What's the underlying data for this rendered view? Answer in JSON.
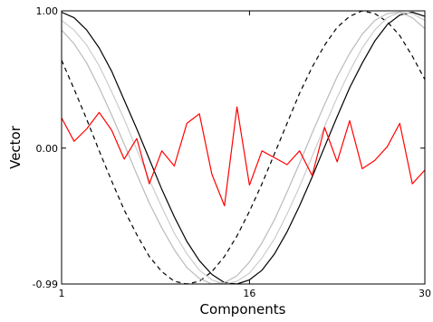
{
  "chart_data": {
    "type": "line",
    "xlabel": "Components",
    "ylabel": "Vector",
    "xlim": [
      1,
      30
    ],
    "ylim": [
      -0.99,
      1.0
    ],
    "x_ticks": [
      1,
      16,
      30
    ],
    "x_tick_labels": [
      "1",
      "16",
      "30"
    ],
    "y_ticks": [
      -0.99,
      0.0,
      1.0
    ],
    "y_tick_labels": [
      "-0.99",
      "0.00",
      "1.00"
    ],
    "grid": false,
    "legend": "none",
    "series": [
      {
        "color": "#000000",
        "dash": "solid",
        "x": [
          1,
          2,
          3,
          4,
          5,
          6,
          7,
          8,
          9,
          10,
          11,
          12,
          13,
          14,
          15,
          16,
          17,
          18,
          19,
          20,
          21,
          22,
          23,
          24,
          25,
          26,
          27,
          28,
          29,
          30
        ],
        "y": [
          0.99,
          0.95,
          0.86,
          0.73,
          0.56,
          0.35,
          0.14,
          -0.08,
          -0.3,
          -0.5,
          -0.68,
          -0.82,
          -0.92,
          -0.98,
          -0.99,
          -0.96,
          -0.89,
          -0.77,
          -0.61,
          -0.42,
          -0.21,
          0.01,
          0.23,
          0.44,
          0.62,
          0.78,
          0.9,
          0.97,
          0.99,
          0.96
        ]
      },
      {
        "color": "#000000",
        "dash": "dashed",
        "x": [
          1,
          2,
          3,
          4,
          5,
          6,
          7,
          8,
          9,
          10,
          11,
          12,
          13,
          14,
          15,
          16,
          17,
          18,
          19,
          20,
          21,
          22,
          23,
          24,
          25,
          26,
          27,
          28,
          29,
          30
        ],
        "y": [
          0.64,
          0.43,
          0.21,
          -0.02,
          -0.24,
          -0.45,
          -0.63,
          -0.79,
          -0.9,
          -0.97,
          -0.99,
          -0.97,
          -0.9,
          -0.79,
          -0.64,
          -0.46,
          -0.26,
          -0.04,
          0.18,
          0.4,
          0.59,
          0.75,
          0.88,
          0.96,
          1.0,
          0.98,
          0.92,
          0.82,
          0.67,
          0.5
        ]
      },
      {
        "color": "#cccccc",
        "dash": "solid",
        "x": [
          1,
          2,
          3,
          4,
          5,
          6,
          7,
          8,
          9,
          10,
          11,
          12,
          13,
          14,
          15,
          16,
          17,
          18,
          19,
          20,
          21,
          22,
          23,
          24,
          25,
          26,
          27,
          28,
          29,
          30
        ],
        "y": [
          0.93,
          0.86,
          0.75,
          0.6,
          0.41,
          0.21,
          -0.01,
          -0.23,
          -0.43,
          -0.62,
          -0.77,
          -0.89,
          -0.96,
          -0.99,
          -0.97,
          -0.91,
          -0.8,
          -0.66,
          -0.48,
          -0.28,
          -0.06,
          0.16,
          0.37,
          0.56,
          0.73,
          0.86,
          0.95,
          0.99,
          0.98,
          0.93
        ]
      },
      {
        "color": "#bbbbbb",
        "dash": "solid",
        "x": [
          1,
          2,
          3,
          4,
          5,
          6,
          7,
          8,
          9,
          10,
          11,
          12,
          13,
          14,
          15,
          16,
          17,
          18,
          19,
          20,
          21,
          22,
          23,
          24,
          25,
          26,
          27,
          28,
          29,
          30
        ],
        "y": [
          0.86,
          0.76,
          0.62,
          0.44,
          0.24,
          0.03,
          -0.19,
          -0.4,
          -0.58,
          -0.74,
          -0.87,
          -0.95,
          -0.99,
          -0.98,
          -0.93,
          -0.83,
          -0.69,
          -0.52,
          -0.32,
          -0.11,
          0.11,
          0.32,
          0.52,
          0.69,
          0.83,
          0.93,
          0.98,
          0.99,
          0.95,
          0.87
        ]
      },
      {
        "color": "#ff0000",
        "dash": "solid",
        "x": [
          1,
          2,
          3,
          4,
          5,
          6,
          7,
          8,
          9,
          10,
          11,
          12,
          13,
          14,
          15,
          16,
          17,
          18,
          19,
          20,
          21,
          22,
          23,
          24,
          25,
          26,
          27,
          28,
          29,
          30
        ],
        "y": [
          0.22,
          0.05,
          0.14,
          0.26,
          0.13,
          -0.08,
          0.07,
          -0.26,
          -0.02,
          -0.13,
          0.18,
          0.25,
          -0.19,
          -0.42,
          0.3,
          -0.27,
          -0.02,
          -0.07,
          -0.12,
          -0.02,
          -0.2,
          0.15,
          -0.1,
          0.2,
          -0.15,
          -0.09,
          0.01,
          0.18,
          -0.26,
          -0.16
        ]
      }
    ]
  }
}
